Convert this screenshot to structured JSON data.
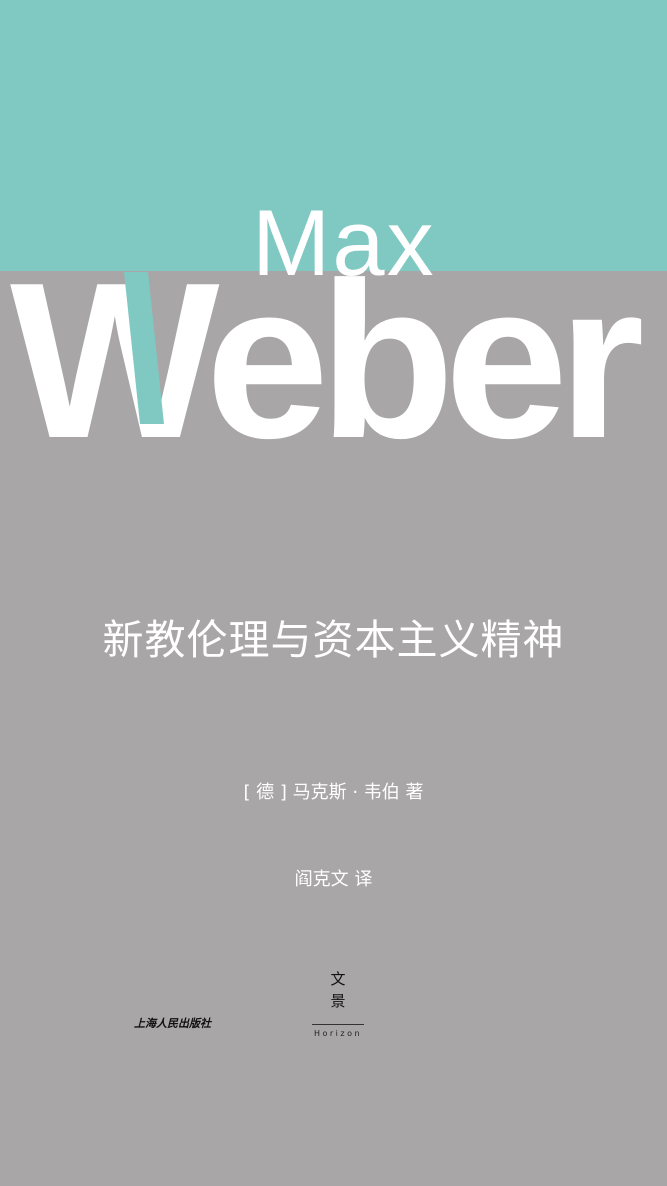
{
  "cover": {
    "name_first": "Max",
    "name_last": "Weber",
    "title": "新教伦理与资本主义精神",
    "author_line": "[ 德 ] 马克斯 · 韦伯 著",
    "translator_line": "阎克文 译",
    "publisher": "上海人民出版社",
    "imprint": {
      "char1": "文",
      "char2": "景",
      "latin": "Horizon"
    },
    "colors": {
      "accent_teal": "#80c9c3",
      "background_gray": "#a8a6a7",
      "text": "#ffffff"
    }
  }
}
